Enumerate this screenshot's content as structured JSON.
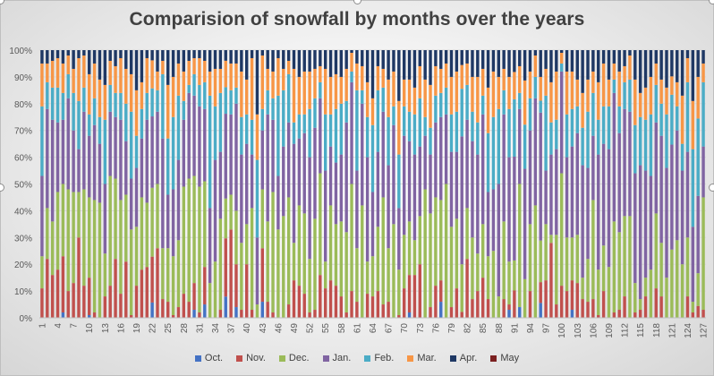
{
  "chart_data": {
    "type": "bar",
    "stacked": "percent",
    "title": "Comparision of snowfall by months over the years",
    "xlabel": "",
    "ylabel": "",
    "ylim": [
      0,
      100
    ],
    "ytick_labels": [
      "0%",
      "10%",
      "20%",
      "30%",
      "40%",
      "50%",
      "60%",
      "70%",
      "80%",
      "90%",
      "100%"
    ],
    "grid": true,
    "legend_position": "bottom",
    "colors": {
      "Oct.": "#4472C4",
      "Nov.": "#C0504D",
      "Dec.": "#9BBB59",
      "Jan.": "#8064A2",
      "Feb.": "#4BACC6",
      "Mar.": "#F79646",
      "Apr.": "#1F3864",
      "May": "#7B2020"
    },
    "category_count": 127,
    "x_tick_labels": [
      "1",
      "4",
      "7",
      "10",
      "13",
      "16",
      "19",
      "22",
      "25",
      "28",
      "31",
      "34",
      "37",
      "40",
      "43",
      "46",
      "49",
      "52",
      "55",
      "58",
      "61",
      "64",
      "67",
      "70",
      "73",
      "76",
      "79",
      "82",
      "85",
      "88",
      "91",
      "94",
      "97",
      "100",
      "103",
      "106",
      "109",
      "112",
      "115",
      "118",
      "121",
      "124",
      "127"
    ],
    "series": [
      {
        "name": "Oct.",
        "values": [
          0,
          0,
          0,
          0,
          2,
          0,
          0,
          0,
          0,
          1,
          0,
          0,
          0,
          0,
          0,
          0,
          0,
          0,
          0,
          0,
          0,
          6,
          0,
          0,
          0,
          0,
          0,
          0,
          0,
          3,
          0,
          5,
          0,
          0,
          0,
          8,
          0,
          4,
          0,
          0,
          0,
          0,
          6,
          0,
          0,
          0,
          0,
          0,
          0,
          0,
          0,
          0,
          0,
          0,
          0,
          0,
          0,
          0,
          0,
          0,
          0,
          0,
          0,
          0,
          0,
          0,
          0,
          0,
          0,
          0,
          2,
          0,
          0,
          0,
          0,
          0,
          6,
          0,
          0,
          0,
          0,
          0,
          0,
          0,
          0,
          0,
          0,
          0,
          0,
          3,
          0,
          4,
          0,
          0,
          0,
          5,
          0,
          0,
          0,
          0,
          0,
          3,
          0,
          0,
          0,
          0,
          0,
          0,
          0,
          0,
          0,
          0,
          0,
          0,
          0,
          0,
          0,
          0,
          0,
          0,
          0,
          0,
          0,
          0,
          0,
          0,
          0
        ]
      },
      {
        "name": "Nov.",
        "values": [
          11,
          22,
          16,
          18,
          21,
          10,
          13,
          30,
          12,
          14,
          2,
          0,
          8,
          12,
          22,
          9,
          21,
          1,
          12,
          18,
          19,
          18,
          26,
          7,
          6,
          1,
          4,
          9,
          6,
          10,
          2,
          14,
          0,
          0,
          3,
          22,
          33,
          16,
          3,
          20,
          3,
          0,
          20,
          6,
          2,
          0,
          0,
          5,
          14,
          12,
          9,
          2,
          3,
          16,
          11,
          14,
          12,
          8,
          2,
          10,
          6,
          0,
          9,
          8,
          10,
          5,
          6,
          0,
          1,
          11,
          14,
          16,
          20,
          0,
          4,
          12,
          8,
          0,
          4,
          11,
          2,
          22,
          7,
          10,
          15,
          7,
          0,
          0,
          7,
          2,
          10,
          0,
          0,
          10,
          0,
          7,
          14,
          28,
          5,
          12,
          10,
          11,
          13,
          7,
          6,
          7,
          1,
          10,
          0,
          2,
          3,
          8,
          0,
          2,
          3,
          8,
          0,
          11,
          8,
          0,
          0,
          0,
          0,
          8,
          2,
          4,
          3
        ]
      },
      {
        "name": "Dec.",
        "values": [
          12,
          19,
          20,
          29,
          27,
          38,
          34,
          17,
          36,
          30,
          42,
          43,
          16,
          41,
          30,
          35,
          25,
          32,
          22,
          27,
          24,
          27,
          24,
          19,
          20,
          22,
          25,
          40,
          46,
          40,
          47,
          32,
          13,
          21,
          34,
          15,
          13,
          20,
          25,
          15,
          38,
          5,
          22,
          30,
          45,
          33,
          38,
          40,
          14,
          30,
          30,
          20,
          34,
          38,
          10,
          28,
          23,
          28,
          30,
          40,
          20,
          42,
          12,
          15,
          24,
          40,
          20,
          35,
          17,
          20,
          20,
          13,
          18,
          48,
          35,
          33,
          30,
          50,
          30,
          26,
          16,
          19,
          23,
          14,
          20,
          16,
          25,
          8,
          29,
          16,
          11,
          46,
          14,
          25,
          42,
          14,
          21,
          3,
          26,
          42,
          20,
          16,
          18,
          8,
          16,
          37,
          17,
          17,
          19,
          34,
          29,
          30,
          38,
          11,
          4,
          7,
          18,
          28,
          20,
          15,
          26,
          29,
          20,
          22,
          4,
          11,
          42
        ]
      },
      {
        "name": "Jan.",
        "values": [
          30,
          37,
          38,
          26,
          24,
          34,
          23,
          16,
          29,
          23,
          28,
          22,
          26,
          24,
          23,
          30,
          20,
          19,
          22,
          22,
          31,
          28,
          27,
          41,
          20,
          25,
          30,
          25,
          32,
          30,
          30,
          27,
          28,
          38,
          25,
          32,
          30,
          40,
          33,
          30,
          20,
          25,
          22,
          40,
          27,
          20,
          26,
          28,
          37,
          25,
          30,
          38,
          34,
          28,
          34,
          22,
          23,
          25,
          41,
          38,
          29,
          38,
          39,
          24,
          28,
          32,
          31,
          37,
          23,
          37,
          30,
          32,
          26,
          20,
          22,
          28,
          31,
          26,
          28,
          25,
          43,
          33,
          36,
          37,
          41,
          24,
          23,
          42,
          40,
          39,
          38,
          28,
          40,
          35,
          40,
          43,
          20,
          30,
          32,
          38,
          30,
          34,
          38,
          42,
          34,
          24,
          43,
          38,
          44,
          48,
          37,
          40,
          39,
          41,
          50,
          40,
          35,
          34,
          40,
          41,
          40,
          41,
          35,
          32,
          28,
          26,
          19
        ]
      },
      {
        "name": "Feb.",
        "values": [
          26,
          10,
          12,
          13,
          10,
          9,
          14,
          18,
          9,
          8,
          10,
          10,
          24,
          10,
          9,
          10,
          14,
          25,
          12,
          11,
          10,
          11,
          8,
          24,
          21,
          27,
          24,
          7,
          3,
          8,
          8,
          10,
          42,
          20,
          22,
          10,
          9,
          6,
          14,
          11,
          13,
          29,
          8,
          9,
          8,
          30,
          21,
          18,
          8,
          9,
          7,
          18,
          11,
          6,
          21,
          12,
          20,
          19,
          8,
          4,
          30,
          5,
          15,
          25,
          23,
          9,
          18,
          7,
          20,
          11,
          11,
          15,
          18,
          7,
          10,
          10,
          9,
          10,
          14,
          15,
          16,
          13,
          11,
          12,
          7,
          22,
          27,
          28,
          9,
          18,
          21,
          6,
          16,
          12,
          8,
          4,
          28,
          12,
          11,
          3,
          16,
          14,
          10,
          14,
          21,
          16,
          13,
          14,
          16,
          5,
          10,
          10,
          12,
          18,
          18,
          19,
          23,
          14,
          12,
          20,
          19,
          9,
          10,
          26,
          29,
          26,
          24
        ]
      },
      {
        "name": "Mar.",
        "values": [
          16,
          7,
          10,
          11,
          11,
          7,
          9,
          16,
          12,
          15,
          13,
          14,
          13,
          9,
          10,
          13,
          13,
          14,
          17,
          10,
          13,
          11,
          7,
          5,
          20,
          15,
          12,
          11,
          9,
          6,
          10,
          8,
          9,
          14,
          9,
          10,
          10,
          9,
          17,
          13,
          23,
          17,
          20,
          8,
          10,
          14,
          8,
          5,
          20,
          14,
          16,
          14,
          11,
          6,
          17,
          14,
          13,
          10,
          12,
          7,
          10,
          9,
          13,
          10,
          9,
          7,
          14,
          13,
          20,
          10,
          12,
          10,
          12,
          14,
          16,
          11,
          9,
          9,
          14,
          15,
          8,
          8,
          13,
          17,
          10,
          17,
          17,
          12,
          8,
          12,
          10,
          10,
          16,
          10,
          8,
          8,
          10,
          15,
          18,
          4,
          16,
          14,
          10,
          13,
          12,
          8,
          14,
          16,
          10,
          6,
          13,
          6,
          9,
          17,
          9,
          12,
          14,
          8,
          9,
          10,
          7,
          9,
          18,
          9,
          18,
          14,
          7
        ]
      },
      {
        "name": "Apr.",
        "values": [
          5,
          5,
          4,
          3,
          5,
          2,
          7,
          3,
          2,
          9,
          5,
          11,
          13,
          4,
          6,
          3,
          7,
          9,
          15,
          12,
          3,
          4,
          8,
          4,
          13,
          10,
          5,
          8,
          4,
          3,
          3,
          4,
          8,
          7,
          7,
          4,
          5,
          5,
          8,
          11,
          3,
          24,
          2,
          7,
          8,
          3,
          7,
          4,
          7,
          10,
          8,
          8,
          7,
          6,
          7,
          10,
          9,
          10,
          7,
          1,
          5,
          6,
          12,
          18,
          6,
          7,
          11,
          8,
          19,
          11,
          11,
          14,
          6,
          11,
          13,
          6,
          7,
          5,
          10,
          8,
          5,
          5,
          10,
          10,
          7,
          14,
          8,
          10,
          7,
          10,
          8,
          6,
          11,
          8,
          2,
          9,
          7,
          12,
          8,
          1,
          8,
          8,
          11,
          16,
          11,
          8,
          12,
          5,
          11,
          5,
          8,
          6,
          2,
          11,
          16,
          14,
          10,
          5,
          11,
          14,
          10,
          12,
          17,
          3,
          19,
          9,
          5
        ]
      },
      {
        "name": "May",
        "values": [
          0,
          0,
          0,
          0,
          0,
          0,
          0,
          0,
          0,
          0,
          0,
          0,
          0,
          0,
          0,
          0,
          0,
          0,
          0,
          0,
          0,
          0,
          0,
          0,
          0,
          0,
          0,
          0,
          0,
          0,
          0,
          0,
          0,
          0,
          0,
          0,
          0,
          0,
          0,
          0,
          0,
          0,
          0,
          0,
          0,
          0,
          0,
          0,
          0,
          0,
          0,
          0,
          0,
          0,
          0,
          0,
          0,
          0,
          0,
          0,
          0,
          0,
          0,
          0,
          0,
          0,
          0,
          0,
          0,
          0,
          0,
          0,
          0,
          0,
          0,
          0,
          0,
          0,
          0,
          0,
          0,
          0,
          0,
          0,
          0,
          0,
          0,
          0,
          0,
          0,
          0,
          0,
          0,
          0,
          0,
          0,
          0,
          0,
          0,
          0,
          0,
          0,
          0,
          0,
          0,
          0,
          0,
          0,
          0,
          0,
          0,
          0,
          0,
          0,
          0,
          0,
          0,
          0,
          0,
          0,
          0,
          0,
          0,
          0,
          0,
          0,
          0
        ]
      }
    ]
  }
}
